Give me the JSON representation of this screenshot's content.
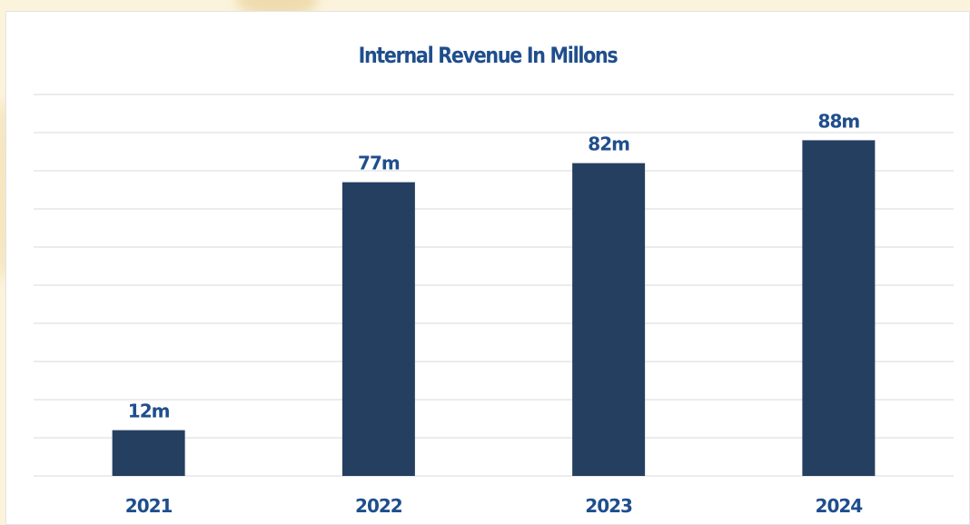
{
  "colors": {
    "background": "#fbf3dc",
    "card": "#ffffff",
    "bar": "#253f61",
    "text": "#1f4e8c",
    "grid": "#d9d9d9"
  },
  "chart_data": {
    "type": "bar",
    "title": "Internal Revenue In Millons",
    "categories": [
      "2021",
      "2022",
      "2023",
      "2024"
    ],
    "values": [
      12,
      77,
      82,
      88
    ],
    "data_labels": [
      "12m",
      "77m",
      "82m",
      "88m"
    ],
    "xlabel": "",
    "ylabel": "",
    "ylim": [
      0,
      100
    ],
    "grid": true,
    "y_axis_labels_visible": false,
    "legend": "none"
  }
}
